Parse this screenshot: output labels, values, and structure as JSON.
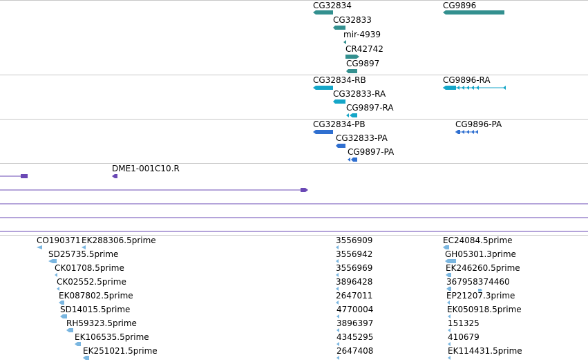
{
  "colors": {
    "gene": "#33908f",
    "transcript_rna": "#14a6c8",
    "transcript_protein": "#2f6fd0",
    "feature": "#6a48b5",
    "est": "#7ab6e0",
    "divider": "#c8c8c8"
  },
  "tracks": {
    "genes": [
      "CG32834",
      "CG32833",
      "mir-4939",
      "CR42742",
      "CG9897",
      "CG9896"
    ],
    "transcripts": [
      "CG32834-RB",
      "CG32833-RA",
      "CG9897-RA",
      "CG9896-RA"
    ],
    "proteins": [
      "CG32834-PB",
      "CG32833-PA",
      "CG9897-PA",
      "CG9896-PA"
    ],
    "features": [
      "DME1-001C10.R"
    ],
    "ests_left": [
      "CO190371",
      "EK288306.5prime",
      "SD25735.5prime",
      "CK01708.5prime",
      "CK02552.5prime",
      "EK087802.5prime",
      "SD14015.5prime",
      "RH59323.5prime",
      "EK106535.5prime",
      "EK251021.5prime"
    ],
    "ests_mid": [
      "3556909",
      "3556942",
      "3556969",
      "3896428",
      "2647011",
      "4770004",
      "3896397",
      "4345295",
      "2647408"
    ],
    "ests_right": [
      "EC24084.5prime",
      "GH05301.3prime",
      "EK246260.5prime",
      "367958374460",
      "EP21207.3prime",
      "EK050918.5prime",
      "151325",
      "410679",
      "EK114431.5prime"
    ]
  }
}
